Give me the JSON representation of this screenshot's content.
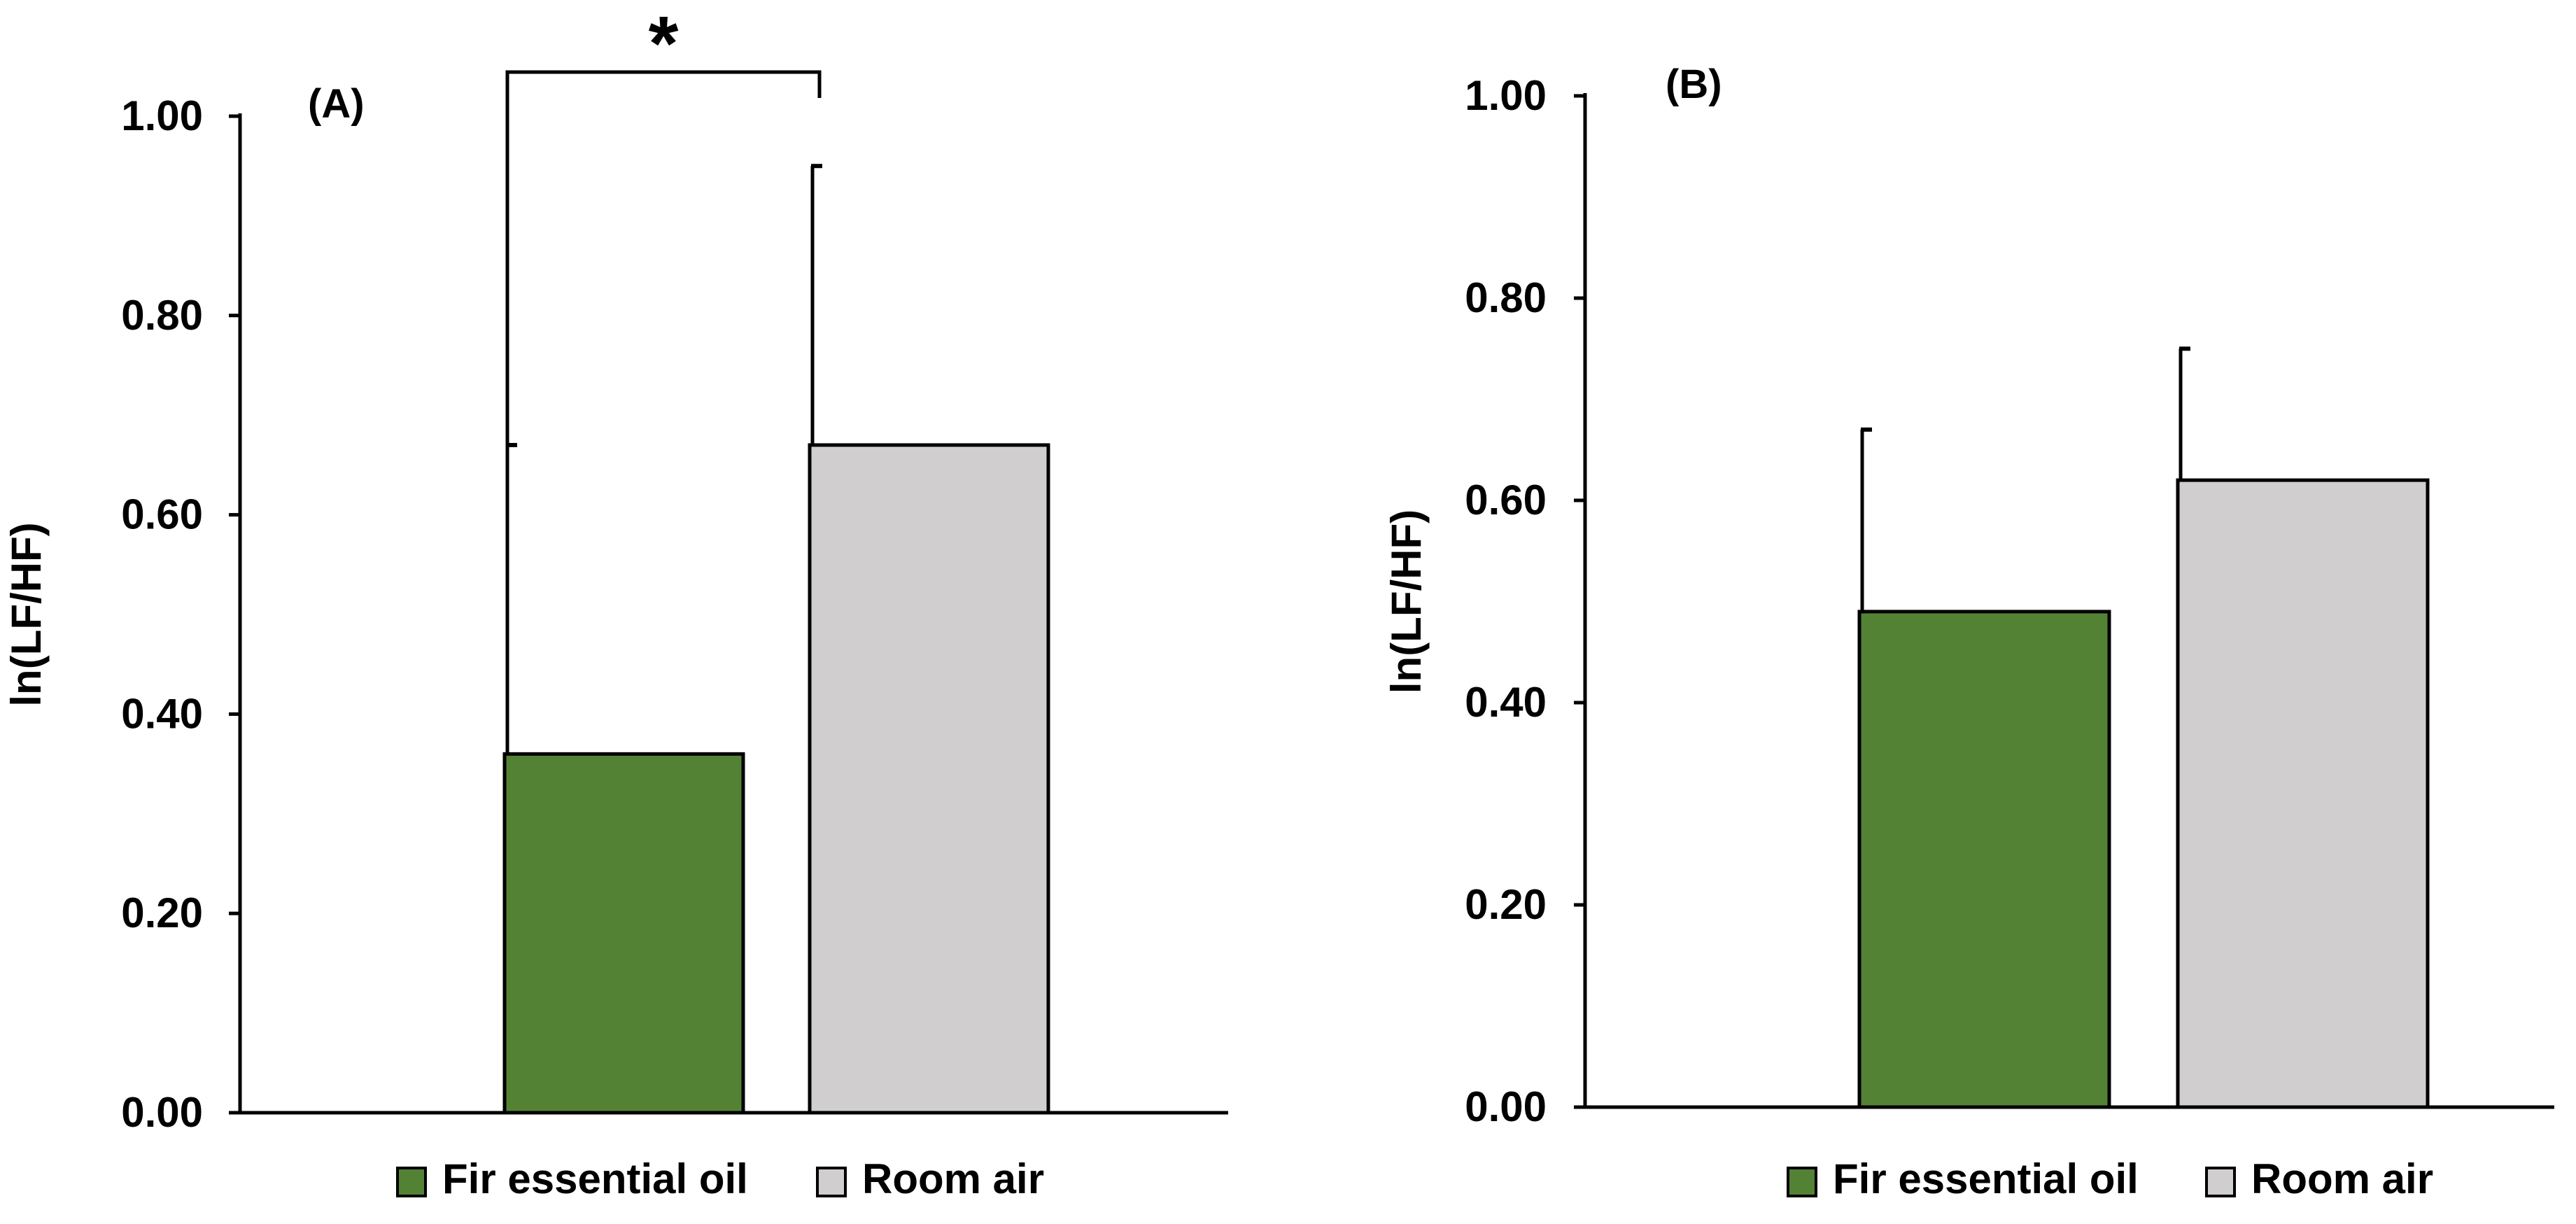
{
  "chart_data": [
    {
      "type": "bar",
      "panel_label": "(A)",
      "categories": [
        "Fir essential oil",
        "Room air"
      ],
      "values": [
        0.36,
        0.67
      ],
      "error_upper": [
        0.31,
        0.28
      ],
      "colors": [
        "#548235",
        "#d0cece"
      ],
      "ylabel": "ln(LF/HF)",
      "xlabel": "",
      "ylim": [
        0,
        1.0
      ],
      "yticks": [
        "0.00",
        "0.20",
        "0.40",
        "0.60",
        "0.80",
        "1.00"
      ],
      "significance": {
        "marker": "*",
        "between": [
          "Fir essential oil",
          "Room air"
        ]
      },
      "legend": {
        "placement": "bottom-center",
        "entries": [
          "Fir essential oil",
          "Room air"
        ]
      }
    },
    {
      "type": "bar",
      "panel_label": "(B)",
      "categories": [
        "Fir essential oil",
        "Room air"
      ],
      "values": [
        0.49,
        0.62
      ],
      "error_upper": [
        0.18,
        0.13
      ],
      "colors": [
        "#548235",
        "#d0cece"
      ],
      "ylabel": "ln(LF/HF)",
      "xlabel": "",
      "ylim": [
        0,
        1.0
      ],
      "yticks": [
        "0.00",
        "0.20",
        "0.40",
        "0.60",
        "0.80",
        "1.00"
      ],
      "significance": null,
      "legend": {
        "placement": "bottom-center",
        "entries": [
          "Fir essential oil",
          "Room air"
        ]
      }
    }
  ]
}
